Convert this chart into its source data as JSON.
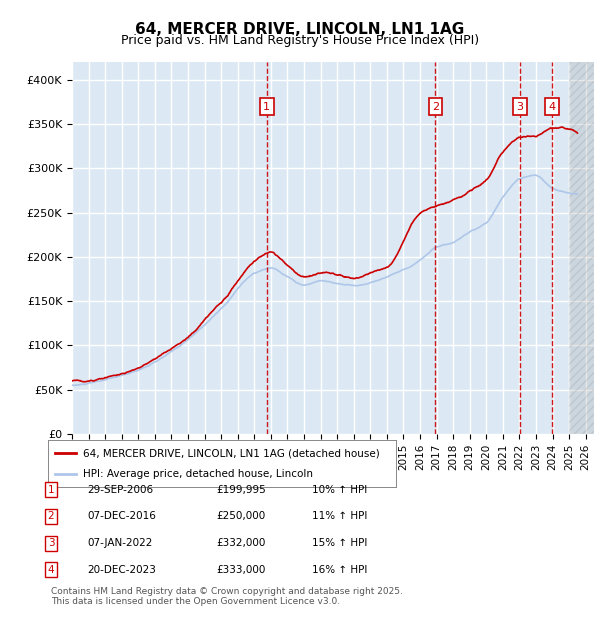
{
  "title": "64, MERCER DRIVE, LINCOLN, LN1 1AG",
  "subtitle": "Price paid vs. HM Land Registry's House Price Index (HPI)",
  "ylabel": "",
  "xlabel": "",
  "ylim": [
    0,
    420000
  ],
  "yticks": [
    0,
    50000,
    100000,
    150000,
    200000,
    250000,
    300000,
    350000,
    400000
  ],
  "ytick_labels": [
    "£0",
    "£50K",
    "£100K",
    "£150K",
    "£200K",
    "£250K",
    "£300K",
    "£350K",
    "£400K"
  ],
  "xlim_start": 1995.0,
  "xlim_end": 2026.5,
  "hpi_color": "#aec6e8",
  "price_color": "#cc0000",
  "sale_marker_color": "#cc0000",
  "background_color": "#dce9f5",
  "grid_color": "#ffffff",
  "sales": [
    {
      "label": "1",
      "date_num": 2006.75,
      "price": 199995,
      "hpi_pct": "10%"
    },
    {
      "label": "2",
      "date_num": 2016.93,
      "price": 250000,
      "hpi_pct": "11%"
    },
    {
      "label": "3",
      "date_num": 2022.03,
      "price": 332000,
      "hpi_pct": "15%"
    },
    {
      "label": "4",
      "date_num": 2023.97,
      "price": 333000,
      "hpi_pct": "16%"
    }
  ],
  "legend_entries": [
    "64, MERCER DRIVE, LINCOLN, LN1 1AG (detached house)",
    "HPI: Average price, detached house, Lincoln"
  ],
  "table_rows": [
    [
      "1",
      "29-SEP-2006",
      "£199,995",
      "10% ↑ HPI"
    ],
    [
      "2",
      "07-DEC-2016",
      "£250,000",
      "11% ↑ HPI"
    ],
    [
      "3",
      "07-JAN-2022",
      "£332,000",
      "15% ↑ HPI"
    ],
    [
      "4",
      "20-DEC-2023",
      "£333,000",
      "16% ↑ HPI"
    ]
  ],
  "footer": "Contains HM Land Registry data © Crown copyright and database right 2025.\nThis data is licensed under the Open Government Licence v3.0.",
  "hatch_color": "#cccccc"
}
